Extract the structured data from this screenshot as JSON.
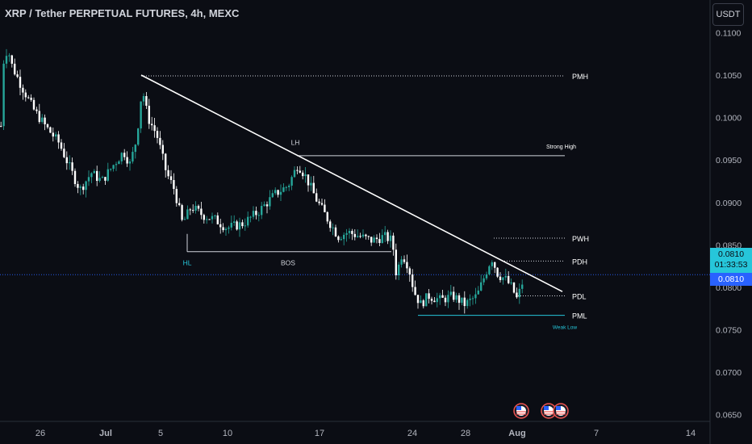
{
  "header": {
    "title": "XRP / Tether PERPETUAL FUTURES, 4h, MEXC",
    "currency": "USDT"
  },
  "price_labels": {
    "last_price": "0.0810",
    "countdown": "01:33:53",
    "mark_price": "0.0810"
  },
  "colors": {
    "up": "#26a69a",
    "down": "#ffffff",
    "accent": "#26c6da",
    "trendline": "#ffffff",
    "background": "#0b0d14"
  },
  "chart_data": {
    "type": "candlestick",
    "ylim": [
      0.0645,
      0.1108
    ],
    "y_ticks": [
      0.065,
      0.07,
      0.075,
      0.08,
      0.085,
      0.09,
      0.095,
      0.1,
      0.105,
      0.11
    ],
    "y_tick_labels": [
      "0.0650",
      "0.0700",
      "0.0750",
      "0.0800",
      "0.0850",
      "0.0900",
      "0.0950",
      "0.1000",
      "0.1050",
      "0.1100"
    ],
    "x_ticks": [
      "26",
      "Jul",
      "5",
      "10",
      "17",
      "24",
      "28",
      "Aug",
      "7",
      "14"
    ],
    "price_path": [
      [
        0,
        0.099
      ],
      [
        4,
        0.108
      ],
      [
        10,
        0.1075
      ],
      [
        14,
        0.106
      ],
      [
        24,
        0.104
      ],
      [
        40,
        0.101
      ],
      [
        55,
        0.099
      ],
      [
        72,
        0.097
      ],
      [
        88,
        0.0935
      ],
      [
        98,
        0.0915
      ],
      [
        112,
        0.0935
      ],
      [
        125,
        0.0925
      ],
      [
        140,
        0.0945
      ],
      [
        152,
        0.096
      ],
      [
        160,
        0.0945
      ],
      [
        168,
        0.0975
      ],
      [
        175,
        0.1035
      ],
      [
        182,
        0.1
      ],
      [
        193,
        0.098
      ],
      [
        205,
        0.0935
      ],
      [
        215,
        0.0915
      ],
      [
        225,
        0.0875
      ],
      [
        236,
        0.0895
      ],
      [
        250,
        0.0885
      ],
      [
        265,
        0.088
      ],
      [
        280,
        0.087
      ],
      [
        300,
        0.0875
      ],
      [
        320,
        0.089
      ],
      [
        340,
        0.091
      ],
      [
        356,
        0.092
      ],
      [
        368,
        0.0945
      ],
      [
        378,
        0.093
      ],
      [
        390,
        0.0905
      ],
      [
        405,
        0.088
      ],
      [
        418,
        0.086
      ],
      [
        430,
        0.0865
      ],
      [
        445,
        0.086
      ],
      [
        460,
        0.0855
      ],
      [
        475,
        0.086
      ],
      [
        485,
        0.0855
      ],
      [
        490,
        0.0815
      ],
      [
        497,
        0.084
      ],
      [
        505,
        0.0825
      ],
      [
        512,
        0.0795
      ],
      [
        520,
        0.078
      ],
      [
        530,
        0.079
      ],
      [
        545,
        0.0785
      ],
      [
        560,
        0.079
      ],
      [
        575,
        0.078
      ],
      [
        590,
        0.079
      ],
      [
        600,
        0.0815
      ],
      [
        608,
        0.0835
      ],
      [
        616,
        0.0815
      ],
      [
        625,
        0.081
      ],
      [
        633,
        0.08
      ],
      [
        640,
        0.0785
      ],
      [
        644,
        0.08
      ],
      [
        648,
        0.081
      ]
    ],
    "annotations": {
      "levels": [
        {
          "label": "PMH",
          "price": 0.1049,
          "x_from": 175,
          "x_to": 700,
          "style": "dotted"
        },
        {
          "label": "Strong High",
          "price": 0.0955,
          "x_from": 368,
          "x_to": 700,
          "style": "solid"
        },
        {
          "label": "PWH",
          "price": 0.0858,
          "x_from": 612,
          "x_to": 700,
          "style": "dotted"
        },
        {
          "label": "PDH",
          "price": 0.0831,
          "x_from": 622,
          "x_to": 700,
          "style": "dotted"
        },
        {
          "label": "PDL",
          "price": 0.079,
          "x_from": 642,
          "x_to": 700,
          "style": "dotted"
        },
        {
          "label": "PML",
          "price": 0.0767,
          "x_from": 518,
          "x_to": 700,
          "style": "solid"
        }
      ],
      "bos_line": {
        "price": 0.0842,
        "x_from": 232,
        "x_to": 485
      },
      "text_labels": [
        {
          "text": "LH",
          "price": 0.0962,
          "x": 366
        },
        {
          "text": "HL",
          "price": 0.083,
          "x": 232
        },
        {
          "text": "BOS",
          "price": 0.083,
          "x": 357
        },
        {
          "text": "Weak Low",
          "price": 0.0755,
          "x": 700
        }
      ],
      "trendline": {
        "x1": 175,
        "p1": 0.105,
        "x2": 697,
        "p2": 0.0795
      },
      "current_price_line": 0.0815
    },
    "event_markers": [
      {
        "x": 646
      },
      {
        "x": 680
      },
      {
        "x": 695
      }
    ]
  }
}
